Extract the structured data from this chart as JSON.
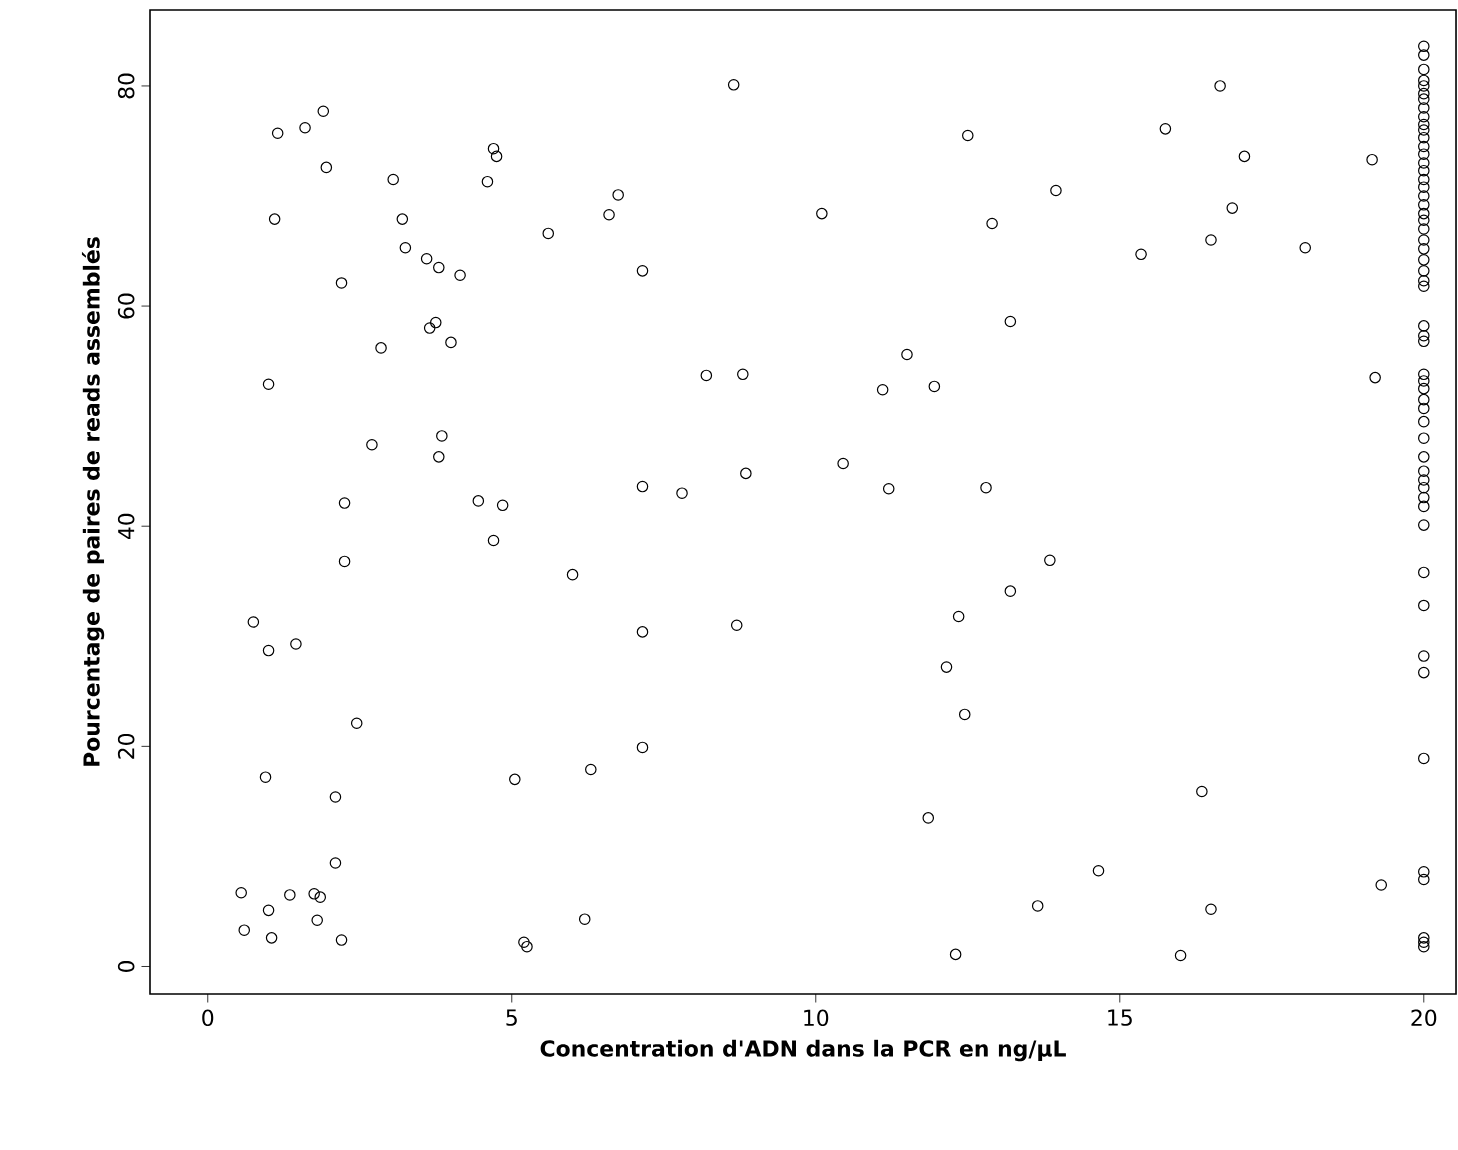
{
  "chart_data": {
    "type": "scatter",
    "xlabel": "Concentration d'ADN dans la PCR en ng/µL",
    "ylabel": "Pourcentage de paires de reads assemblés",
    "xlim": [
      -0.95,
      20.53
    ],
    "ylim": [
      -2.5,
      86.9
    ],
    "xticks": [
      0,
      5,
      10,
      15,
      20
    ],
    "yticks": [
      0,
      20,
      40,
      60,
      80
    ],
    "marker": "circle",
    "series": [
      {
        "color": "#000000",
        "x": [
          0.55,
          0.6,
          0.75,
          0.95,
          1.0,
          1.0,
          1.05,
          1.0,
          1.1,
          1.15,
          1.35,
          1.45,
          1.6,
          1.75,
          1.8,
          1.85,
          1.9,
          1.95,
          2.1,
          2.1,
          2.2,
          2.2,
          2.25,
          2.25,
          2.45,
          2.7,
          2.85,
          3.05,
          3.2,
          3.25,
          3.6,
          3.65,
          3.75,
          3.8,
          3.8,
          3.85,
          4.0,
          4.15,
          4.45,
          4.6,
          4.7,
          4.75,
          4.7,
          4.85,
          5.05,
          5.2,
          5.25,
          5.6,
          6.0,
          6.2,
          6.3,
          6.6,
          6.75,
          7.15,
          7.15,
          7.15,
          7.15,
          7.8,
          8.2,
          8.65,
          8.7,
          8.8,
          8.85,
          10.1,
          10.45,
          11.1,
          11.2,
          11.5,
          11.85,
          11.95,
          12.15,
          12.3,
          12.35,
          12.45,
          12.5,
          12.8,
          12.9,
          13.2,
          13.2,
          13.65,
          13.85,
          13.95,
          14.65,
          15.35,
          15.75,
          16.0,
          16.35,
          16.5,
          16.5,
          16.65,
          16.85,
          17.05,
          18.05,
          19.15,
          19.2,
          19.3,
          20,
          20,
          20,
          20,
          20,
          20,
          20,
          20,
          20,
          20,
          20,
          20,
          20,
          20,
          20,
          20,
          20,
          20,
          20,
          20,
          20,
          20,
          20,
          20,
          20,
          20,
          20,
          20,
          20,
          20,
          20,
          20,
          20,
          20,
          20,
          20,
          20,
          20,
          20,
          20,
          20,
          20,
          20,
          20,
          20,
          20,
          20,
          20,
          20,
          20,
          20,
          20,
          20,
          20,
          20,
          20
        ],
        "values": [
          6.7,
          3.3,
          31.3,
          17.2,
          5.1,
          52.9,
          2.6,
          28.7,
          67.9,
          75.7,
          6.5,
          29.3,
          76.2,
          6.6,
          4.2,
          6.3,
          77.7,
          72.6,
          15.4,
          9.4,
          62.1,
          2.4,
          42.1,
          36.8,
          22.1,
          47.4,
          56.2,
          71.5,
          67.9,
          65.3,
          64.3,
          58.0,
          58.5,
          46.3,
          63.5,
          48.2,
          56.7,
          62.8,
          42.3,
          71.3,
          74.3,
          73.6,
          38.7,
          41.9,
          17.0,
          2.2,
          1.8,
          66.6,
          35.6,
          4.3,
          17.9,
          68.3,
          70.1,
          63.2,
          43.6,
          30.4,
          19.9,
          43.0,
          53.7,
          80.1,
          31.0,
          53.8,
          44.8,
          68.4,
          45.7,
          52.4,
          43.4,
          55.6,
          13.5,
          52.7,
          27.2,
          1.1,
          31.8,
          22.9,
          75.5,
          43.5,
          67.5,
          58.6,
          34.1,
          5.5,
          36.9,
          70.5,
          8.7,
          64.7,
          76.1,
          1.0,
          15.9,
          66.0,
          5.2,
          80.0,
          68.9,
          73.6,
          65.3,
          73.3,
          53.5,
          7.4,
          83.6,
          82.8,
          81.5,
          80.5,
          80,
          79.3,
          78.8,
          78,
          77.2,
          76.5,
          76,
          75.3,
          74.5,
          73.8,
          73,
          72.3,
          71.5,
          70.8,
          70,
          69.2,
          68.4,
          67.8,
          67,
          66,
          65.2,
          64.2,
          63.2,
          62.3,
          61.8,
          58.2,
          57.3,
          56.8,
          53.8,
          53.2,
          52.5,
          51.5,
          50.7,
          49.5,
          48,
          46.3,
          45,
          44.2,
          43.5,
          42.6,
          41.8,
          40.1,
          35.8,
          32.8,
          28.2,
          26.7,
          18.9,
          8.6,
          7.9,
          2.6,
          2.2,
          1.8
        ]
      }
    ]
  }
}
